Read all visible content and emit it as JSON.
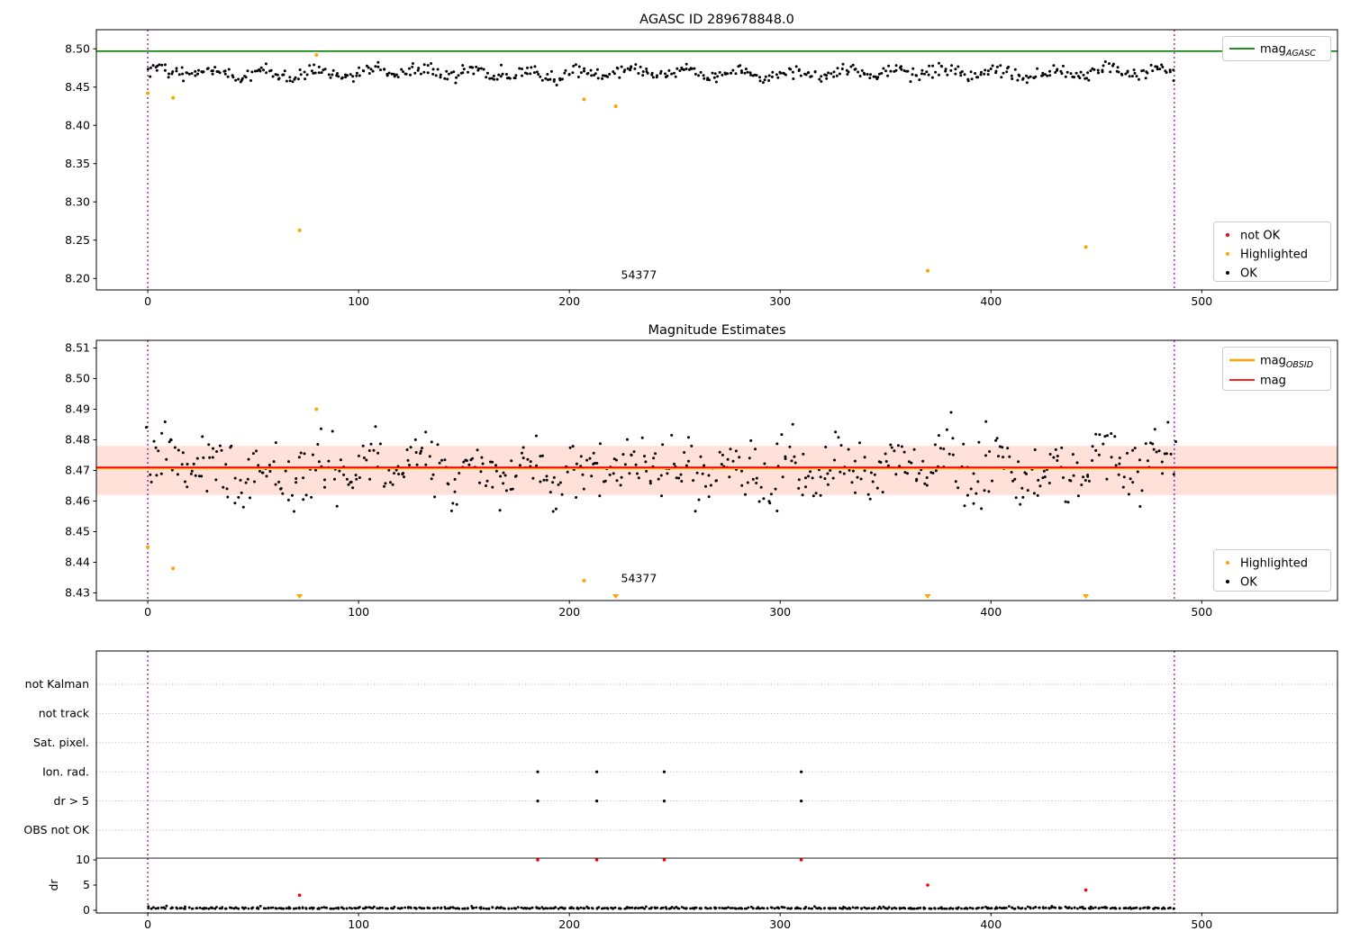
{
  "colors": {
    "ok": "#000000",
    "highlighted": "#ffa500",
    "not_ok": "#ff0000",
    "mag_agasc": "#008000",
    "mag": "#ff0000",
    "mag_obsid": "#ffa500",
    "band": "#ff3300",
    "obsid_boundary": "#8b008b",
    "grid": "#b0b0b0",
    "axis": "#000000"
  },
  "chart_data": [
    {
      "type": "scatter",
      "title": "AGASC ID 289678848.0",
      "xlim": [
        -24.4,
        564.4
      ],
      "ylim": [
        8.185,
        8.525
      ],
      "xticks": [
        0,
        100,
        200,
        300,
        400,
        500
      ],
      "xtick_labels": [
        "0",
        "100",
        "200",
        "300",
        "400",
        "500"
      ],
      "yticks": [
        8.2,
        8.25,
        8.3,
        8.35,
        8.4,
        8.45,
        8.5
      ],
      "ytick_labels": [
        "8.20",
        "8.25",
        "8.30",
        "8.35",
        "8.40",
        "8.45",
        "8.50"
      ],
      "mag_agasc_line": 8.497,
      "obsid_boundaries": [
        0,
        487
      ],
      "annotation": {
        "text": "54377",
        "x": 233,
        "y": 8.2
      },
      "legend_line": {
        "label_main": "mag",
        "label_sub": "AGASC"
      },
      "legend_markers": [
        {
          "label": "not OK"
        },
        {
          "label": "Highlighted"
        },
        {
          "label": "OK"
        }
      ],
      "highlighted_points": [
        [
          0,
          8.442
        ],
        [
          12,
          8.436
        ],
        [
          72,
          8.263
        ],
        [
          80,
          8.492
        ],
        [
          207,
          8.434
        ],
        [
          222,
          8.425
        ],
        [
          370,
          8.21
        ],
        [
          445,
          8.241
        ]
      ],
      "not_ok_points": [],
      "ok_series": {
        "n": 560,
        "x_start": 0,
        "x_end": 487,
        "y_center": 8.4685,
        "y_wave_amp": 0.0045,
        "y_noise_std": 0.0042,
        "y_min": 8.448,
        "y_max": 8.4925,
        "seed": 42
      }
    },
    {
      "type": "scatter",
      "title": "Magnitude Estimates",
      "xlim": [
        -24.4,
        564.4
      ],
      "ylim": [
        8.4275,
        8.5125
      ],
      "xticks": [
        0,
        100,
        200,
        300,
        400,
        500
      ],
      "xtick_labels": [
        "0",
        "100",
        "200",
        "300",
        "400",
        "500"
      ],
      "yticks": [
        8.43,
        8.44,
        8.45,
        8.46,
        8.47,
        8.48,
        8.49,
        8.5,
        8.51
      ],
      "ytick_labels": [
        "8.43",
        "8.44",
        "8.45",
        "8.46",
        "8.47",
        "8.48",
        "8.49",
        "8.50",
        "8.51"
      ],
      "mag_line": 8.471,
      "mag_obsid_line": 8.4708,
      "uncertainty_band": [
        8.462,
        8.478
      ],
      "obsid_boundaries": [
        0,
        487
      ],
      "annotation": {
        "text": "54377",
        "x": 233,
        "y": 8.4335
      },
      "legend_lines": [
        {
          "label_main": "mag",
          "label_sub": "OBSID"
        },
        {
          "label_main": "mag",
          "label_sub": ""
        }
      ],
      "legend_markers": [
        {
          "label": "Highlighted"
        },
        {
          "label": "OK"
        }
      ],
      "highlighted_points": [
        [
          0,
          8.445
        ],
        [
          12,
          8.438
        ],
        [
          80,
          8.49
        ],
        [
          207,
          8.434
        ]
      ],
      "highlighted_offscale_low_x": [
        72,
        222,
        370,
        445
      ],
      "ok_series": {
        "n": 560,
        "x_start": 0,
        "x_end": 487,
        "y_center": 8.4705,
        "y_wave_amp": 0.004,
        "y_noise_std": 0.005,
        "y_min": 8.4535,
        "y_max": 8.4912,
        "seed": 7
      }
    },
    {
      "type": "flags",
      "categories": [
        "not Kalman",
        "not track",
        "Sat. pixel.",
        "Ion. rad.",
        "dr > 5",
        "OBS not OK"
      ],
      "xticks": [
        0,
        100,
        200,
        300,
        400,
        500
      ],
      "xtick_labels": [
        "0",
        "100",
        "200",
        "300",
        "400",
        "500"
      ],
      "flag_events": {
        "Ion. rad.": [
          185,
          213,
          245,
          310
        ],
        "dr > 5": [
          185,
          213,
          245,
          310
        ]
      },
      "dr_axis": {
        "label": "dr",
        "ticks": [
          0,
          5,
          10
        ],
        "tick_labels": [
          "0",
          "5",
          "10"
        ],
        "limit_line": 10
      },
      "dr_not_ok_clipped_x": [
        185,
        213,
        245,
        310
      ],
      "dr_not_ok_points": [
        [
          72,
          3
        ],
        [
          370,
          5
        ],
        [
          445,
          4
        ]
      ],
      "dr_ok_series": {
        "n": 560,
        "x_start": 0,
        "x_end": 487,
        "base": 0.3,
        "noise": 0.18,
        "min": 0.05,
        "max": 1.2,
        "seed": 3
      },
      "obsid_boundaries": [
        0,
        487
      ]
    }
  ]
}
